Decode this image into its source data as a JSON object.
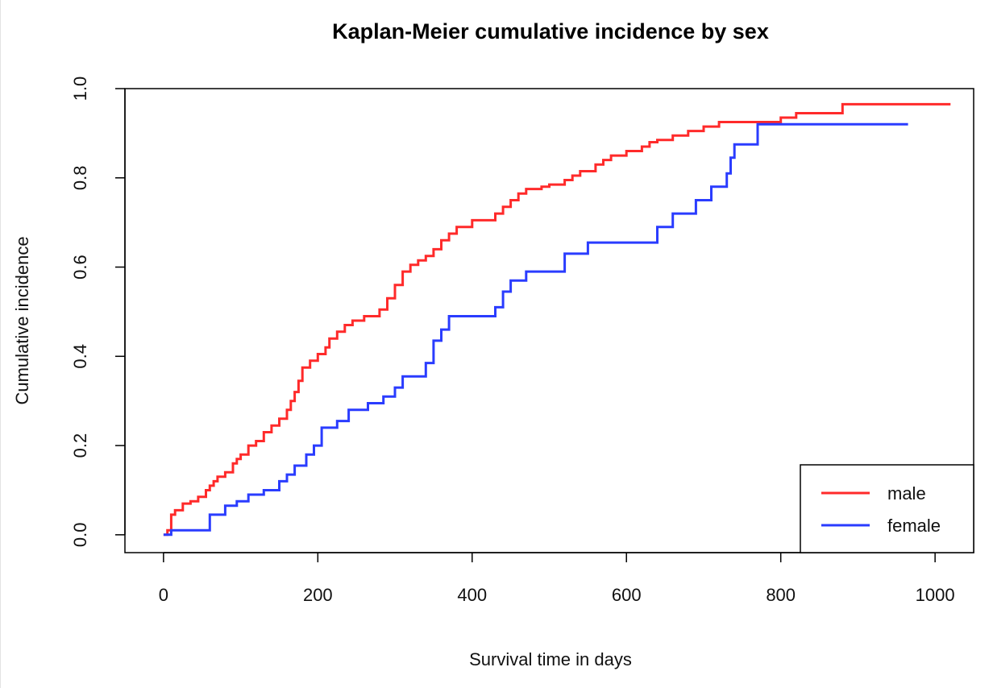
{
  "chart_data": {
    "type": "line",
    "step": true,
    "title": "Kaplan-Meier cumulative incidence by sex",
    "xlabel": "Survival time in days",
    "ylabel": "Cumulative incidence",
    "xlim": [
      -50,
      1050
    ],
    "ylim": [
      -0.04,
      1.0
    ],
    "xticks": [
      0,
      200,
      400,
      600,
      800,
      1000
    ],
    "yticks": [
      0.0,
      0.2,
      0.4,
      0.6,
      0.8,
      1.0
    ],
    "xtick_labels": [
      "0",
      "200",
      "400",
      "600",
      "800",
      "1000"
    ],
    "ytick_labels": [
      "0.0",
      "0.2",
      "0.4",
      "0.6",
      "0.8",
      "1.0"
    ],
    "grid": false,
    "legend_position": "bottom-right",
    "series": [
      {
        "name": "male",
        "color": "#ff2a2a",
        "x": [
          0,
          5,
          10,
          15,
          25,
          35,
          45,
          55,
          60,
          65,
          70,
          80,
          90,
          95,
          100,
          110,
          120,
          130,
          140,
          150,
          160,
          165,
          170,
          175,
          180,
          190,
          200,
          210,
          215,
          225,
          235,
          245,
          260,
          280,
          290,
          300,
          310,
          320,
          330,
          340,
          350,
          360,
          370,
          380,
          400,
          430,
          440,
          450,
          460,
          470,
          490,
          500,
          520,
          530,
          540,
          560,
          570,
          580,
          600,
          620,
          630,
          640,
          660,
          680,
          700,
          720,
          780,
          800,
          820,
          880,
          1020
        ],
        "y": [
          0.0,
          0.01,
          0.045,
          0.055,
          0.07,
          0.075,
          0.085,
          0.1,
          0.11,
          0.12,
          0.13,
          0.14,
          0.16,
          0.17,
          0.18,
          0.2,
          0.21,
          0.23,
          0.245,
          0.26,
          0.28,
          0.3,
          0.32,
          0.345,
          0.375,
          0.39,
          0.405,
          0.42,
          0.44,
          0.455,
          0.47,
          0.48,
          0.49,
          0.505,
          0.53,
          0.56,
          0.59,
          0.605,
          0.615,
          0.625,
          0.64,
          0.66,
          0.675,
          0.69,
          0.705,
          0.72,
          0.735,
          0.75,
          0.765,
          0.775,
          0.78,
          0.785,
          0.795,
          0.805,
          0.815,
          0.83,
          0.84,
          0.85,
          0.86,
          0.87,
          0.88,
          0.885,
          0.895,
          0.905,
          0.915,
          0.925,
          0.925,
          0.935,
          0.945,
          0.965,
          0.965
        ]
      },
      {
        "name": "female",
        "color": "#2a3cff",
        "x": [
          0,
          10,
          60,
          80,
          95,
          110,
          130,
          150,
          160,
          170,
          185,
          195,
          205,
          225,
          240,
          265,
          285,
          300,
          310,
          340,
          350,
          360,
          370,
          430,
          440,
          450,
          470,
          520,
          550,
          640,
          660,
          690,
          710,
          730,
          735,
          740,
          770,
          965
        ],
        "y": [
          0.0,
          0.01,
          0.045,
          0.065,
          0.075,
          0.09,
          0.1,
          0.12,
          0.135,
          0.155,
          0.18,
          0.2,
          0.24,
          0.255,
          0.28,
          0.295,
          0.31,
          0.33,
          0.355,
          0.385,
          0.435,
          0.46,
          0.49,
          0.51,
          0.545,
          0.57,
          0.59,
          0.63,
          0.655,
          0.69,
          0.72,
          0.75,
          0.78,
          0.81,
          0.845,
          0.875,
          0.92,
          0.92
        ]
      }
    ]
  }
}
